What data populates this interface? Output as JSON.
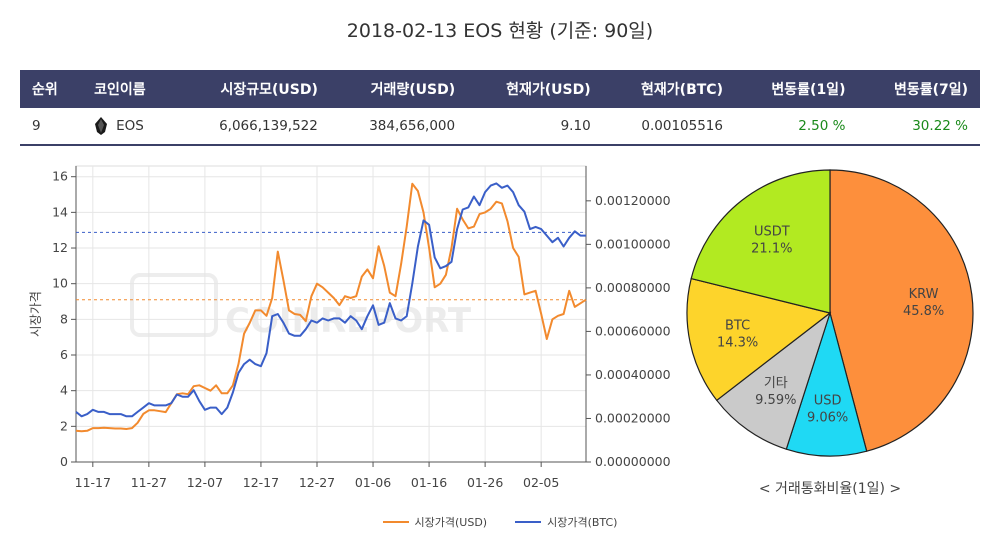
{
  "title": "2018-02-13 EOS 현황 (기준: 90일)",
  "table": {
    "headers": [
      "순위",
      "코인이름",
      "시장규모(USD)",
      "거래량(USD)",
      "현재가(USD)",
      "현재가(BTC)",
      "변동률(1일)",
      "변동률(7일)"
    ],
    "row": {
      "rank": "9",
      "name": "EOS",
      "market_cap": "6,066,139,522",
      "volume": "384,656,000",
      "price_usd": "9.10",
      "price_btc": "0.00105516",
      "change_1d": "2.50 %",
      "change_7d": "30.22 %"
    }
  },
  "watermark": "COINREPORT",
  "legend": {
    "usd": "시장가격(USD)",
    "btc": "시장가격(BTC)"
  },
  "pie_caption": "< 거래통화비율(1일) >",
  "colors": {
    "usd": "#f28a2e",
    "btc": "#3a5fc8",
    "header_bg": "#3b4067",
    "positive": "#1a8a1a"
  },
  "chart_data": [
    {
      "type": "line",
      "xlabel": "",
      "ylabel": "시장가격",
      "x": [
        "11-14",
        "11-15",
        "11-16",
        "11-17",
        "11-18",
        "11-19",
        "11-20",
        "11-21",
        "11-22",
        "11-23",
        "11-24",
        "11-25",
        "11-26",
        "11-27",
        "11-28",
        "11-29",
        "11-30",
        "12-01",
        "12-02",
        "12-03",
        "12-04",
        "12-05",
        "12-06",
        "12-07",
        "12-08",
        "12-09",
        "12-10",
        "12-11",
        "12-12",
        "12-13",
        "12-14",
        "12-15",
        "12-16",
        "12-17",
        "12-18",
        "12-19",
        "12-20",
        "12-21",
        "12-22",
        "12-23",
        "12-24",
        "12-25",
        "12-26",
        "12-27",
        "12-28",
        "12-29",
        "12-30",
        "12-31",
        "01-01",
        "01-02",
        "01-03",
        "01-04",
        "01-05",
        "01-06",
        "01-07",
        "01-08",
        "01-09",
        "01-10",
        "01-11",
        "01-12",
        "01-13",
        "01-14",
        "01-15",
        "01-16",
        "01-17",
        "01-18",
        "01-19",
        "01-20",
        "01-21",
        "01-22",
        "01-23",
        "01-24",
        "01-25",
        "01-26",
        "01-27",
        "01-28",
        "01-29",
        "01-30",
        "01-31",
        "02-01",
        "02-02",
        "02-03",
        "02-04",
        "02-05",
        "02-06",
        "02-07",
        "02-08",
        "02-09",
        "02-10",
        "02-11",
        "02-12",
        "02-13"
      ],
      "x_ticks": [
        "11-17",
        "11-27",
        "12-07",
        "12-17",
        "12-27",
        "01-06",
        "01-16",
        "01-26",
        "02-05"
      ],
      "series": [
        {
          "name": "시장가격(USD)",
          "axis": "left",
          "color": "#f28a2e",
          "values": [
            1.75,
            1.72,
            1.75,
            1.9,
            1.9,
            1.92,
            1.9,
            1.88,
            1.88,
            1.85,
            1.9,
            2.2,
            2.7,
            2.9,
            2.9,
            2.85,
            2.8,
            3.3,
            3.8,
            3.85,
            3.8,
            4.25,
            4.3,
            4.15,
            4.0,
            4.3,
            3.85,
            3.85,
            4.3,
            5.5,
            7.2,
            7.8,
            8.5,
            8.5,
            8.2,
            9.2,
            11.8,
            10.2,
            8.5,
            8.3,
            8.25,
            7.9,
            9.3,
            10.0,
            9.8,
            9.5,
            9.2,
            8.8,
            9.3,
            9.2,
            9.3,
            10.4,
            10.8,
            10.3,
            12.1,
            11.0,
            9.5,
            9.3,
            11.1,
            13.2,
            15.6,
            15.2,
            14.0,
            12.0,
            9.8,
            10.0,
            10.5,
            12.0,
            14.2,
            13.6,
            13.1,
            13.2,
            13.9,
            14.0,
            14.2,
            14.6,
            14.5,
            13.5,
            12.0,
            11.5,
            9.4,
            9.5,
            9.6,
            8.3,
            6.9,
            8.0,
            8.2,
            8.3,
            9.6,
            8.7,
            8.9,
            9.1
          ]
        },
        {
          "name": "시장가격(BTC)",
          "axis": "right",
          "color": "#3a5fc8",
          "values": [
            0.00023,
            0.00021,
            0.00022,
            0.00024,
            0.00023,
            0.00023,
            0.00022,
            0.00022,
            0.00022,
            0.00021,
            0.00021,
            0.00023,
            0.00025,
            0.00027,
            0.00026,
            0.00026,
            0.00026,
            0.00027,
            0.00031,
            0.0003,
            0.0003,
            0.00033,
            0.00028,
            0.00024,
            0.00025,
            0.00025,
            0.00022,
            0.00025,
            0.00032,
            0.00041,
            0.00045,
            0.00047,
            0.00045,
            0.00044,
            0.0005,
            0.00067,
            0.00068,
            0.00064,
            0.00059,
            0.00058,
            0.00058,
            0.00061,
            0.00065,
            0.00064,
            0.00066,
            0.00065,
            0.00066,
            0.00066,
            0.00064,
            0.00067,
            0.00065,
            0.00061,
            0.00067,
            0.00072,
            0.00063,
            0.00064,
            0.00073,
            0.00066,
            0.00065,
            0.00067,
            0.00082,
            0.00099,
            0.00111,
            0.00109,
            0.00094,
            0.00089,
            0.0009,
            0.00092,
            0.00107,
            0.00116,
            0.00117,
            0.00122,
            0.00118,
            0.00124,
            0.00127,
            0.00128,
            0.00126,
            0.00127,
            0.00124,
            0.00118,
            0.00115,
            0.00107,
            0.00108,
            0.00107,
            0.00104,
            0.00101,
            0.00103,
            0.00099,
            0.00103,
            0.00106,
            0.00104,
            0.00104
          ]
        }
      ],
      "y_left": {
        "range": [
          0,
          16.6
        ],
        "ticks": [
          0,
          2,
          4,
          6,
          8,
          10,
          12,
          14,
          16
        ]
      },
      "y_right": {
        "range": [
          0,
          0.00136
        ],
        "ticks": [
          "0.00000000",
          "0.00020000",
          "0.00040000",
          "0.00060000",
          "0.00080000",
          "0.00100000",
          "0.00120000"
        ]
      },
      "reference_lines": [
        {
          "series": "시장가격(USD)",
          "value": 9.1
        },
        {
          "series": "시장가격(BTC)",
          "value": 0.00105516
        }
      ],
      "grid": true
    },
    {
      "type": "pie",
      "slices": [
        {
          "label": "KRW",
          "pct": "45.8%",
          "value": 45.8,
          "color": "#fd8f3c"
        },
        {
          "label": "USD",
          "pct": "9.06%",
          "value": 9.06,
          "color": "#1fd9f4"
        },
        {
          "label": "기타",
          "pct": "9.59%",
          "value": 9.59,
          "color": "#cacaca"
        },
        {
          "label": "BTC",
          "pct": "14.3%",
          "value": 14.3,
          "color": "#fdd42b"
        },
        {
          "label": "USDT",
          "pct": "21.1%",
          "value": 21.1,
          "color": "#b2ea21"
        }
      ]
    }
  ]
}
